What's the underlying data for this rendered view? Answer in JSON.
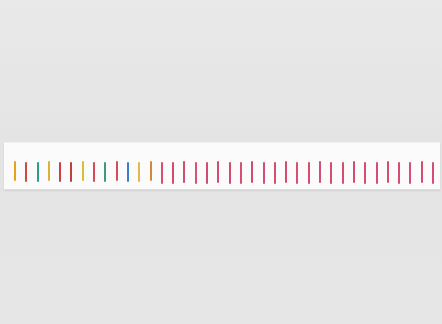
{
  "scene": {
    "background_color": "#e6e6e6",
    "paper_color": "#fbfbfb",
    "mark_colors": [
      "#e7a21d",
      "#cf4b3f",
      "#2d9c8b",
      "#d9b337",
      "#cf3d4d",
      "#b9423d",
      "#d7be33",
      "#d54a56",
      "#3b9a7f",
      "#d84c58",
      "#3b7fc8",
      "#e4b94a",
      "#d6863b",
      "#d94e73",
      "#d84a6a",
      "#d44b70",
      "#d94f75",
      "#d34b71",
      "#d84b70",
      "#d44a6c",
      "#d94e75",
      "#d54c70",
      "#d74c73",
      "#d84d70",
      "#d84c70",
      "#d94e73",
      "#d84c70",
      "#d54c70",
      "#d84c73",
      "#d94c70",
      "#d84b70",
      "#d94c74",
      "#d74c73",
      "#d84d70",
      "#d84c70",
      "#d94e74",
      "#d84c70",
      "#d84c73"
    ]
  }
}
